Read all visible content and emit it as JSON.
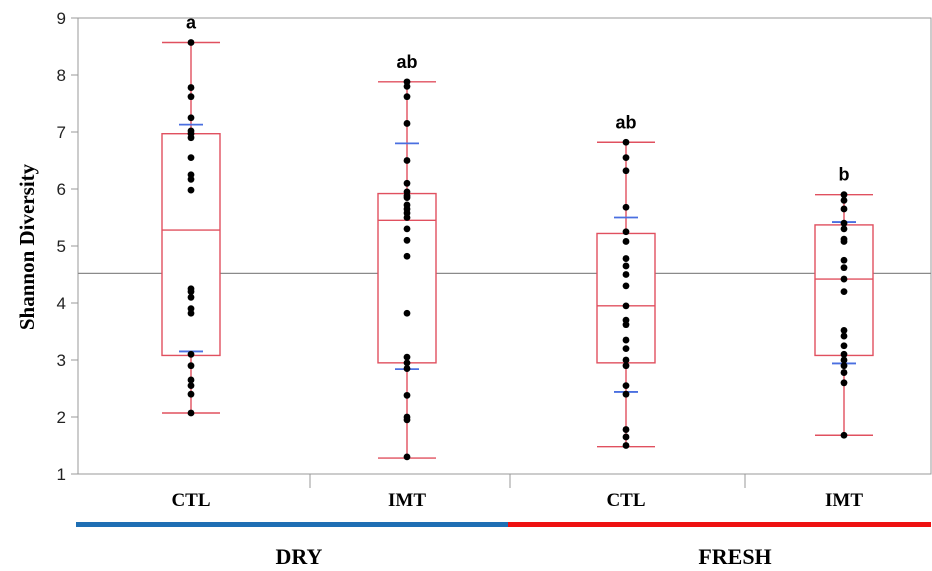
{
  "chart_data": {
    "type": "box",
    "ylabel": "Shannon Diversity",
    "ylim": [
      1,
      9
    ],
    "yticks": [
      1,
      2,
      3,
      4,
      5,
      6,
      7,
      8,
      9
    ],
    "grand_mean": 4.52,
    "categories": [
      "CTL",
      "IMT",
      "CTL",
      "IMT"
    ],
    "groups": [
      {
        "label": "DRY",
        "color": "#1f6fb4",
        "members": [
          0,
          1
        ]
      },
      {
        "label": "FRESH",
        "color": "#ee1111",
        "members": [
          2,
          3
        ]
      }
    ],
    "boxes": [
      {
        "category": "CTL",
        "group": "DRY",
        "letter": "a",
        "min": 2.07,
        "q1": 3.08,
        "median": 5.28,
        "q3": 6.97,
        "max": 8.57,
        "ci_low": 3.15,
        "ci_high": 7.13,
        "points": [
          8.57,
          7.78,
          7.62,
          7.25,
          7.02,
          6.97,
          6.9,
          6.55,
          6.25,
          6.17,
          5.98,
          4.25,
          4.2,
          4.1,
          3.9,
          3.82,
          3.1,
          2.9,
          2.65,
          2.55,
          2.4,
          2.07
        ]
      },
      {
        "category": "IMT",
        "group": "DRY",
        "letter": "ab",
        "min": 1.28,
        "q1": 2.95,
        "median": 5.45,
        "q3": 5.92,
        "max": 7.88,
        "ci_low": 2.84,
        "ci_high": 6.8,
        "points": [
          7.88,
          7.8,
          7.62,
          7.15,
          6.5,
          6.1,
          5.95,
          5.88,
          5.85,
          5.72,
          5.65,
          5.58,
          5.5,
          5.3,
          5.1,
          4.82,
          3.82,
          3.05,
          2.95,
          2.85,
          2.38,
          2.0,
          1.95,
          1.3
        ]
      },
      {
        "category": "CTL",
        "group": "FRESH",
        "letter": "ab",
        "min": 1.48,
        "q1": 2.95,
        "median": 3.95,
        "q3": 5.22,
        "max": 6.82,
        "ci_low": 2.44,
        "ci_high": 5.5,
        "points": [
          6.82,
          6.55,
          6.32,
          5.68,
          5.25,
          5.08,
          4.78,
          4.65,
          4.5,
          4.3,
          3.95,
          3.7,
          3.62,
          3.35,
          3.2,
          3.0,
          2.9,
          2.55,
          2.4,
          1.78,
          1.65,
          1.5
        ]
      },
      {
        "category": "IMT",
        "group": "FRESH",
        "letter": "b",
        "min": 1.68,
        "q1": 3.08,
        "median": 4.42,
        "q3": 5.37,
        "max": 5.9,
        "ci_low": 2.94,
        "ci_high": 5.42,
        "points": [
          5.9,
          5.8,
          5.65,
          5.4,
          5.3,
          5.12,
          5.08,
          4.75,
          4.62,
          4.42,
          4.2,
          3.52,
          3.42,
          3.25,
          3.1,
          3.0,
          2.9,
          2.78,
          2.6,
          1.68
        ]
      }
    ],
    "colors": {
      "box": "#e0505f",
      "ci": "#4a6fe0",
      "points": "#000000",
      "mean_line": "#8a8a8a",
      "axis": "#999999"
    }
  }
}
